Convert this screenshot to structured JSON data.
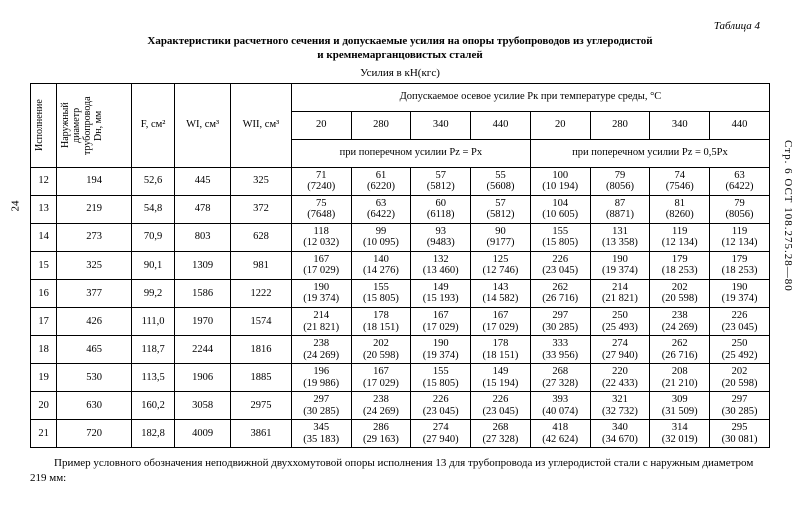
{
  "meta": {
    "page_left": "24",
    "side_right": "Стр. 6   ОСТ 108.275.28—80",
    "table_label": "Таблица 4",
    "title1": "Характеристики расчетного сечения и допускаемые усилия на опоры трубопроводов из углеродистой",
    "title2": "и кремнемарганцовистых сталей",
    "units": "Усилия в кН(кгс)"
  },
  "headers": {
    "col1": "Исполнение",
    "col2": "Наружный диаметр трубопровода Dн, мм",
    "col3": "F, см²",
    "col4": "WI, см³",
    "col5": "WII, см³",
    "group_top": "Допускаемое осевое усилие Pк при температуре среды, °C",
    "temps": [
      "20",
      "280",
      "340",
      "440",
      "20",
      "280",
      "340",
      "440"
    ],
    "sub_left": "при поперечном усилии Pz = Px",
    "sub_right": "при поперечном усилии Pz = 0,5Px"
  },
  "rows": [
    {
      "n": "12",
      "d": "194",
      "f": "52,6",
      "w1": "445",
      "w2": "325",
      "v": [
        [
          "71",
          "(7240)"
        ],
        [
          "61",
          "(6220)"
        ],
        [
          "57",
          "(5812)"
        ],
        [
          "55",
          "(5608)"
        ],
        [
          "100",
          "(10 194)"
        ],
        [
          "79",
          "(8056)"
        ],
        [
          "74",
          "(7546)"
        ],
        [
          "63",
          "(6422)"
        ]
      ]
    },
    {
      "n": "13",
      "d": "219",
      "f": "54,8",
      "w1": "478",
      "w2": "372",
      "v": [
        [
          "75",
          "(7648)"
        ],
        [
          "63",
          "(6422)"
        ],
        [
          "60",
          "(6118)"
        ],
        [
          "57",
          "(5812)"
        ],
        [
          "104",
          "(10 605)"
        ],
        [
          "87",
          "(8871)"
        ],
        [
          "81",
          "(8260)"
        ],
        [
          "79",
          "(8056)"
        ]
      ]
    },
    {
      "n": "14",
      "d": "273",
      "f": "70,9",
      "w1": "803",
      "w2": "628",
      "v": [
        [
          "118",
          "(12 032)"
        ],
        [
          "99",
          "(10 095)"
        ],
        [
          "93",
          "(9483)"
        ],
        [
          "90",
          "(9177)"
        ],
        [
          "155",
          "(15 805)"
        ],
        [
          "131",
          "(13 358)"
        ],
        [
          "119",
          "(12 134)"
        ],
        [
          "119",
          "(12 134)"
        ]
      ]
    },
    {
      "n": "15",
      "d": "325",
      "f": "90,1",
      "w1": "1309",
      "w2": "981",
      "v": [
        [
          "167",
          "(17 029)"
        ],
        [
          "140",
          "(14 276)"
        ],
        [
          "132",
          "(13 460)"
        ],
        [
          "125",
          "(12 746)"
        ],
        [
          "226",
          "(23 045)"
        ],
        [
          "190",
          "(19 374)"
        ],
        [
          "179",
          "(18 253)"
        ],
        [
          "179",
          "(18 253)"
        ]
      ]
    },
    {
      "n": "16",
      "d": "377",
      "f": "99,2",
      "w1": "1586",
      "w2": "1222",
      "v": [
        [
          "190",
          "(19 374)"
        ],
        [
          "155",
          "(15 805)"
        ],
        [
          "149",
          "(15 193)"
        ],
        [
          "143",
          "(14 582)"
        ],
        [
          "262",
          "(26 716)"
        ],
        [
          "214",
          "(21 821)"
        ],
        [
          "202",
          "(20 598)"
        ],
        [
          "190",
          "(19 374)"
        ]
      ]
    },
    {
      "n": "17",
      "d": "426",
      "f": "111,0",
      "w1": "1970",
      "w2": "1574",
      "v": [
        [
          "214",
          "(21 821)"
        ],
        [
          "178",
          "(18 151)"
        ],
        [
          "167",
          "(17 029)"
        ],
        [
          "167",
          "(17 029)"
        ],
        [
          "297",
          "(30 285)"
        ],
        [
          "250",
          "(25 493)"
        ],
        [
          "238",
          "(24 269)"
        ],
        [
          "226",
          "(23 045)"
        ]
      ]
    },
    {
      "n": "18",
      "d": "465",
      "f": "118,7",
      "w1": "2244",
      "w2": "1816",
      "v": [
        [
          "238",
          "(24 269)"
        ],
        [
          "202",
          "(20 598)"
        ],
        [
          "190",
          "(19 374)"
        ],
        [
          "178",
          "(18 151)"
        ],
        [
          "333",
          "(33 956)"
        ],
        [
          "274",
          "(27 940)"
        ],
        [
          "262",
          "(26 716)"
        ],
        [
          "250",
          "(25 492)"
        ]
      ]
    },
    {
      "n": "19",
      "d": "530",
      "f": "113,5",
      "w1": "1906",
      "w2": "1885",
      "v": [
        [
          "196",
          "(19 986)"
        ],
        [
          "167",
          "(17 029)"
        ],
        [
          "155",
          "(15 805)"
        ],
        [
          "149",
          "(15 194)"
        ],
        [
          "268",
          "(27 328)"
        ],
        [
          "220",
          "(22 433)"
        ],
        [
          "208",
          "(21 210)"
        ],
        [
          "202",
          "(20 598)"
        ]
      ]
    },
    {
      "n": "20",
      "d": "630",
      "f": "160,2",
      "w1": "3058",
      "w2": "2975",
      "v": [
        [
          "297",
          "(30 285)"
        ],
        [
          "238",
          "(24 269)"
        ],
        [
          "226",
          "(23 045)"
        ],
        [
          "226",
          "(23 045)"
        ],
        [
          "393",
          "(40 074)"
        ],
        [
          "321",
          "(32 732)"
        ],
        [
          "309",
          "(31 509)"
        ],
        [
          "297",
          "(30 285)"
        ]
      ]
    },
    {
      "n": "21",
      "d": "720",
      "f": "182,8",
      "w1": "4009",
      "w2": "3861",
      "v": [
        [
          "345",
          "(35 183)"
        ],
        [
          "286",
          "(29 163)"
        ],
        [
          "274",
          "(27 940)"
        ],
        [
          "268",
          "(27 328)"
        ],
        [
          "418",
          "(42 624)"
        ],
        [
          "340",
          "(34 670)"
        ],
        [
          "314",
          "(32 019)"
        ],
        [
          "295",
          "(30 081)"
        ]
      ]
    }
  ],
  "footer": "Пример условного обозначения неподвижной двуххомутовой опоры исполнения 13 для трубопровода из углеродистой стали с наружным диаметром 219 мм:"
}
